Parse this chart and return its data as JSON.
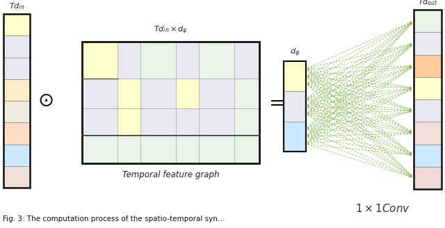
{
  "bg_color": "#ffffff",
  "left_col_colors": [
    "#ffffcc",
    "#e8e8f0",
    "#e8e8f0",
    "#fdecc8",
    "#f0ece0",
    "#fddcc8",
    "#cce8ff",
    "#f0e0d8"
  ],
  "right_col_colors": [
    "#e8f4e8",
    "#e8e8f0",
    "#ffcc99",
    "#ffffcc",
    "#e8e8f0",
    "#f0e0d8",
    "#cce8ff",
    "#f0d8d8"
  ],
  "mid_col_colors": [
    "#ffffcc",
    "#e8e8f0",
    "#cce8ff"
  ],
  "matrix_colors": [
    [
      "#ffffcc",
      "#e8e8f0",
      "#e8f4e8",
      "#e8e8f0",
      "#e8f4e8",
      "#e8e8f0"
    ],
    [
      "#e8e8f0",
      "#ffffcc",
      "#e8e8f0",
      "#ffffcc",
      "#e8e8f0",
      "#e8f4e8"
    ],
    [
      "#e8e8f0",
      "#ffffcc",
      "#e8e8f0",
      "#e8e8f0",
      "#e8e8f0",
      "#e8f4e8"
    ],
    [
      "#e8f4e8",
      "#e8f4e8",
      "#e8f4e8",
      "#e8f4e8",
      "#e8f4e8",
      "#e8f4e8"
    ]
  ],
  "dashed_color": "#88bb55"
}
